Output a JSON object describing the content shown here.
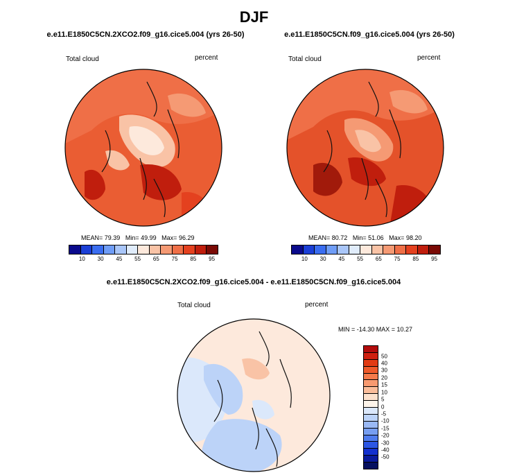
{
  "title": "DJF",
  "panels": [
    {
      "title": "e.e11.E1850C5CN.2XCO2.f09_g16.cice5.004 (yrs 26-50)",
      "left_label": "Total cloud",
      "right_label": "percent",
      "stats": {
        "mean_label": "MEAN=",
        "mean": "79.39",
        "min_label": "Min=",
        "min": "49.99",
        "max_label": "Max=",
        "max": "96.29"
      }
    },
    {
      "title": "e.e11.E1850C5CN.f09_g16.cice5.004 (yrs 26-50)",
      "left_label": "Total cloud",
      "right_label": "percent",
      "stats": {
        "mean_label": "MEAN=",
        "mean": "80.72",
        "min_label": "Min=",
        "min": "51.06",
        "max_label": "Max=",
        "max": "98.20"
      }
    },
    {
      "title": "e.e11.E1850C5CN.2XCO2.f09_g16.cice5.004 - e.e11.E1850C5CN.f09_g16.cice5.004",
      "left_label": "Total cloud",
      "right_label": "percent",
      "stats_text": "MIN = -14.30 MAX = 10.27"
    }
  ],
  "colorbars": {
    "top": {
      "colors": [
        "#0a0a8c",
        "#1b3fd6",
        "#3a6df0",
        "#6f9df7",
        "#a9c6f9",
        "#e0ecfb",
        "#fde9dc",
        "#f9c3a6",
        "#f59a74",
        "#ef6f47",
        "#e4411f",
        "#c01e0d",
        "#7a0a05"
      ],
      "tick_labels": [
        "10",
        "30",
        "45",
        "55",
        "65",
        "75",
        "85",
        "95"
      ]
    },
    "diff": {
      "colors": [
        "#b20c0c",
        "#cf2010",
        "#e23b14",
        "#ef5a2a",
        "#f57a4a",
        "#f89a70",
        "#fbbd9a",
        "#fde1cc",
        "#fdf4ea",
        "#dbe8fb",
        "#bcd3f8",
        "#9ab9f5",
        "#779ef1",
        "#4f7bed",
        "#2c56e4",
        "#1330cf",
        "#0a1a9c",
        "#06105f"
      ],
      "tick_labels": [
        "50",
        "40",
        "30",
        "20",
        "15",
        "10",
        "5",
        "0",
        "-5",
        "-10",
        "-15",
        "-20",
        "-30",
        "-40",
        "-50"
      ]
    }
  },
  "chart_data": [
    {
      "type": "heatmap",
      "title": "e.e11.E1850C5CN.2XCO2.f09_g16.cice5.004 (yrs 26-50)",
      "variable": "Total cloud",
      "units": "percent",
      "season": "DJF",
      "projection": "north polar stereographic",
      "statistics": {
        "mean": 79.39,
        "min": 49.99,
        "max": 96.29
      },
      "contour_levels": [
        10,
        20,
        30,
        40,
        45,
        50,
        55,
        60,
        65,
        70,
        75,
        80,
        85,
        90,
        95
      ],
      "colormap": "blue-white-red"
    },
    {
      "type": "heatmap",
      "title": "e.e11.E1850C5CN.f09_g16.cice5.004 (yrs 26-50)",
      "variable": "Total cloud",
      "units": "percent",
      "season": "DJF",
      "projection": "north polar stereographic",
      "statistics": {
        "mean": 80.72,
        "min": 51.06,
        "max": 98.2
      },
      "contour_levels": [
        10,
        20,
        30,
        40,
        45,
        50,
        55,
        60,
        65,
        70,
        75,
        80,
        85,
        90,
        95
      ],
      "colormap": "blue-white-red"
    },
    {
      "type": "heatmap",
      "title": "e.e11.E1850C5CN.2XCO2.f09_g16.cice5.004 - e.e11.E1850C5CN.f09_g16.cice5.004",
      "variable": "Total cloud",
      "units": "percent",
      "season": "DJF",
      "projection": "north polar stereographic",
      "statistics": {
        "min": -14.3,
        "max": 10.27
      },
      "contour_levels": [
        -50,
        -40,
        -30,
        -20,
        -15,
        -10,
        -5,
        0,
        5,
        10,
        15,
        20,
        30,
        40,
        50
      ],
      "colormap": "diverging"
    }
  ]
}
